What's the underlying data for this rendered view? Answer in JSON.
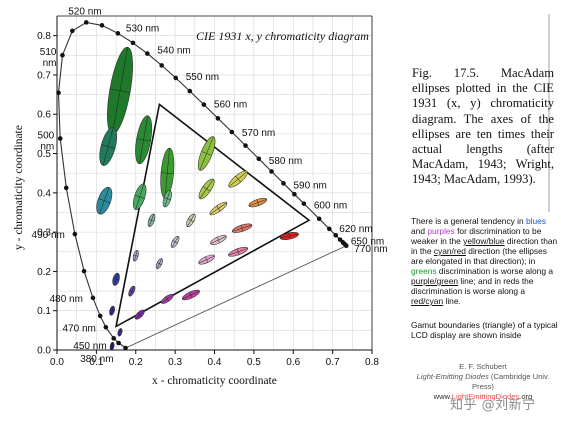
{
  "chart_data": {
    "type": "scatter",
    "title": "CIE 1931 x, y chromaticity diagram",
    "xlabel": "x - chromaticity coordinate",
    "ylabel": "y - chromaticity coordinate",
    "xlim": [
      0,
      0.8
    ],
    "ylim": [
      0,
      0.85
    ],
    "x_ticks": [
      "0.0",
      "0.1",
      "0.2",
      "0.3",
      "0.4",
      "0.5",
      "0.6",
      "0.7",
      "0.8"
    ],
    "y_ticks": [
      "0.0",
      "0.1",
      "0.2",
      "0.3",
      "0.4",
      "0.5",
      "0.6",
      "0.7",
      "0.8"
    ],
    "grid": true,
    "spectral_locus": [
      {
        "nm": 380,
        "x": 0.1741,
        "y": 0.005
      },
      {
        "nm": 450,
        "x": 0.1566,
        "y": 0.0177
      },
      {
        "nm": 460,
        "x": 0.144,
        "y": 0.0297
      },
      {
        "nm": 470,
        "x": 0.1241,
        "y": 0.0578
      },
      {
        "nm": 475,
        "x": 0.1096,
        "y": 0.0868
      },
      {
        "nm": 480,
        "x": 0.0913,
        "y": 0.1327
      },
      {
        "nm": 485,
        "x": 0.0687,
        "y": 0.2007
      },
      {
        "nm": 490,
        "x": 0.0454,
        "y": 0.295
      },
      {
        "nm": 495,
        "x": 0.0235,
        "y": 0.4127
      },
      {
        "nm": 500,
        "x": 0.0082,
        "y": 0.5384
      },
      {
        "nm": 505,
        "x": 0.0039,
        "y": 0.6548
      },
      {
        "nm": 510,
        "x": 0.0139,
        "y": 0.7502
      },
      {
        "nm": 515,
        "x": 0.0389,
        "y": 0.812
      },
      {
        "nm": 520,
        "x": 0.0743,
        "y": 0.8338
      },
      {
        "nm": 525,
        "x": 0.1142,
        "y": 0.8262
      },
      {
        "nm": 530,
        "x": 0.1547,
        "y": 0.8059
      },
      {
        "nm": 535,
        "x": 0.1929,
        "y": 0.7816
      },
      {
        "nm": 540,
        "x": 0.2296,
        "y": 0.7543
      },
      {
        "nm": 545,
        "x": 0.2658,
        "y": 0.7243
      },
      {
        "nm": 550,
        "x": 0.3016,
        "y": 0.6923
      },
      {
        "nm": 555,
        "x": 0.3373,
        "y": 0.6589
      },
      {
        "nm": 560,
        "x": 0.3731,
        "y": 0.6245
      },
      {
        "nm": 565,
        "x": 0.4087,
        "y": 0.5896
      },
      {
        "nm": 570,
        "x": 0.4441,
        "y": 0.5547
      },
      {
        "nm": 575,
        "x": 0.4788,
        "y": 0.5202
      },
      {
        "nm": 580,
        "x": 0.5125,
        "y": 0.4866
      },
      {
        "nm": 585,
        "x": 0.5448,
        "y": 0.4544
      },
      {
        "nm": 590,
        "x": 0.5752,
        "y": 0.4242
      },
      {
        "nm": 595,
        "x": 0.6029,
        "y": 0.3965
      },
      {
        "nm": 600,
        "x": 0.627,
        "y": 0.3725
      },
      {
        "nm": 610,
        "x": 0.6658,
        "y": 0.334
      },
      {
        "nm": 620,
        "x": 0.6915,
        "y": 0.3083
      },
      {
        "nm": 630,
        "x": 0.7079,
        "y": 0.292
      },
      {
        "nm": 640,
        "x": 0.719,
        "y": 0.2809
      },
      {
        "nm": 650,
        "x": 0.726,
        "y": 0.274
      },
      {
        "nm": 660,
        "x": 0.73,
        "y": 0.27
      },
      {
        "nm": 680,
        "x": 0.7334,
        "y": 0.2666
      },
      {
        "nm": 770,
        "x": 0.7347,
        "y": 0.2653
      }
    ],
    "wavelength_labels": [
      {
        "text": "520 nm",
        "nm": 520
      },
      {
        "text": "530 nm",
        "nm": 530
      },
      {
        "text": "540 nm",
        "nm": 540
      },
      {
        "text": "550 nm",
        "nm": 550
      },
      {
        "text": "560 nm",
        "nm": 560
      },
      {
        "text": "570 nm",
        "nm": 570
      },
      {
        "text": "580 nm",
        "nm": 580
      },
      {
        "text": "590 nm",
        "nm": 590
      },
      {
        "text": "600 nm",
        "nm": 600
      },
      {
        "text": "620 nm",
        "nm": 620
      },
      {
        "text": "650 nm",
        "nm": 650
      },
      {
        "text": "770 nm",
        "nm": 770
      },
      {
        "text": "510 nm",
        "nm": 510
      },
      {
        "text": "500 nm",
        "nm": 500
      },
      {
        "text": "490 nm",
        "nm": 490
      },
      {
        "text": "480 nm",
        "nm": 480
      },
      {
        "text": "470 nm",
        "nm": 470
      },
      {
        "text": "450 nm",
        "nm": 450
      },
      {
        "text": "380 nm",
        "nm": 380
      }
    ],
    "gamut_triangle": [
      {
        "x": 0.26,
        "y": 0.625
      },
      {
        "x": 0.64,
        "y": 0.33
      },
      {
        "x": 0.15,
        "y": 0.06
      }
    ],
    "ellipses": [
      {
        "x": 0.16,
        "y": 0.66,
        "a": 0.026,
        "b": 0.112,
        "angle": 80,
        "color": "#1e7a2a"
      },
      {
        "x": 0.13,
        "y": 0.518,
        "a": 0.018,
        "b": 0.05,
        "angle": 75,
        "color": "#1f7a5a"
      },
      {
        "x": 0.22,
        "y": 0.535,
        "a": 0.018,
        "b": 0.062,
        "angle": 80,
        "color": "#2a8a34"
      },
      {
        "x": 0.28,
        "y": 0.45,
        "a": 0.016,
        "b": 0.064,
        "angle": 85,
        "color": "#3a9a30"
      },
      {
        "x": 0.38,
        "y": 0.5,
        "a": 0.014,
        "b": 0.046,
        "angle": 68,
        "color": "#8ac040"
      },
      {
        "x": 0.12,
        "y": 0.38,
        "a": 0.016,
        "b": 0.036,
        "angle": 70,
        "color": "#2a8c9a"
      },
      {
        "x": 0.21,
        "y": 0.39,
        "a": 0.013,
        "b": 0.034,
        "angle": 72,
        "color": "#48a860"
      },
      {
        "x": 0.28,
        "y": 0.385,
        "a": 0.009,
        "b": 0.022,
        "angle": 72,
        "color": "#6ab88a"
      },
      {
        "x": 0.38,
        "y": 0.41,
        "a": 0.011,
        "b": 0.03,
        "angle": 55,
        "color": "#a8c848"
      },
      {
        "x": 0.46,
        "y": 0.435,
        "a": 0.01,
        "b": 0.03,
        "angle": 40,
        "color": "#d0d050"
      },
      {
        "x": 0.24,
        "y": 0.33,
        "a": 0.007,
        "b": 0.017,
        "angle": 70,
        "color": "#8ab8b0"
      },
      {
        "x": 0.34,
        "y": 0.33,
        "a": 0.008,
        "b": 0.018,
        "angle": 60,
        "color": "#c8d0b0"
      },
      {
        "x": 0.41,
        "y": 0.36,
        "a": 0.008,
        "b": 0.026,
        "angle": 35,
        "color": "#e0d070"
      },
      {
        "x": 0.51,
        "y": 0.375,
        "a": 0.008,
        "b": 0.024,
        "angle": 20,
        "color": "#e09040"
      },
      {
        "x": 0.3,
        "y": 0.275,
        "a": 0.007,
        "b": 0.016,
        "angle": 60,
        "color": "#c8c0d8"
      },
      {
        "x": 0.41,
        "y": 0.28,
        "a": 0.008,
        "b": 0.022,
        "angle": 25,
        "color": "#e0c0d0"
      },
      {
        "x": 0.47,
        "y": 0.31,
        "a": 0.008,
        "b": 0.026,
        "angle": 18,
        "color": "#e07868"
      },
      {
        "x": 0.59,
        "y": 0.29,
        "a": 0.008,
        "b": 0.024,
        "angle": 12,
        "color": "#e02020"
      },
      {
        "x": 0.2,
        "y": 0.24,
        "a": 0.006,
        "b": 0.014,
        "angle": 75,
        "color": "#a8a8d8"
      },
      {
        "x": 0.26,
        "y": 0.22,
        "a": 0.006,
        "b": 0.014,
        "angle": 65,
        "color": "#c0a8d8"
      },
      {
        "x": 0.38,
        "y": 0.23,
        "a": 0.008,
        "b": 0.022,
        "angle": 25,
        "color": "#e0a8d0"
      },
      {
        "x": 0.46,
        "y": 0.25,
        "a": 0.008,
        "b": 0.026,
        "angle": 20,
        "color": "#e080a8"
      },
      {
        "x": 0.15,
        "y": 0.18,
        "a": 0.008,
        "b": 0.016,
        "angle": 75,
        "color": "#3040a8"
      },
      {
        "x": 0.19,
        "y": 0.15,
        "a": 0.006,
        "b": 0.014,
        "angle": 65,
        "color": "#7040b8"
      },
      {
        "x": 0.28,
        "y": 0.13,
        "a": 0.007,
        "b": 0.018,
        "angle": 35,
        "color": "#b040b0"
      },
      {
        "x": 0.34,
        "y": 0.14,
        "a": 0.008,
        "b": 0.024,
        "angle": 25,
        "color": "#c040a0"
      },
      {
        "x": 0.14,
        "y": 0.1,
        "a": 0.006,
        "b": 0.012,
        "angle": 75,
        "color": "#3030a0"
      },
      {
        "x": 0.21,
        "y": 0.09,
        "a": 0.007,
        "b": 0.015,
        "angle": 45,
        "color": "#8030b0"
      },
      {
        "x": 0.14,
        "y": 0.01,
        "a": 0.005,
        "b": 0.01,
        "angle": 80,
        "color": "#202090"
      },
      {
        "x": 0.16,
        "y": 0.045,
        "a": 0.005,
        "b": 0.01,
        "angle": 75,
        "color": "#4030a0"
      }
    ],
    "series": [
      {
        "values": []
      }
    ]
  },
  "caption": {
    "text": "Fig. 17.5. MacAdam ellipses plotted in the CIE 1931 (x, y) chromaticity diagram. The axes of the ellipses are ten times their actual lengths (after MacAdam, 1943; Wright, 1943; MacAdam, 1993)."
  },
  "note": {
    "p1": "There is a general tendency in",
    "blues": "blues",
    "and": " and ",
    "purples": "purples",
    "p2": " for discrimination to be weaker in the ",
    "yb": "yellow/blue",
    "p3": " direction than in the ",
    "cr": "cyan/red",
    "p4": " direction (the ellipses are elongated in that direction); in ",
    "greens": "greens",
    "p5": " discrimination is worse along a ",
    "pg": "purple/green",
    "p6": " line; and in reds the discrimination is worse along a ",
    "rc": "red/cyan",
    "p7": " line."
  },
  "gamut_note": "Gamut boundaries (triangle) of a typical LCD display are shown inside",
  "credit": {
    "author": "E. F. Schubert",
    "book": "Light-Emitting Diodes",
    "publisher": " (Cambridge Univ. Press)",
    "url_pre": "www.",
    "url_hl": "LightEmittingDiodes",
    "url_post": ".org"
  },
  "watermark": "知乎 @刘新宁"
}
